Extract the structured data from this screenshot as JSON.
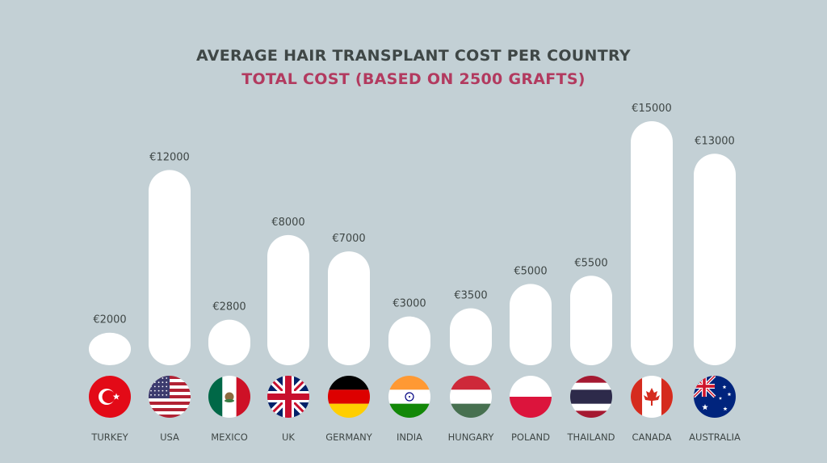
{
  "chart_data": {
    "type": "bar",
    "title": "AVERAGE HAIR TRANSPLANT COST PER COUNTRY",
    "subtitle": "TOTAL COST (BASED ON 2500 GRAFTS)",
    "categories": [
      "TURKEY",
      "USA",
      "MEXICO",
      "UK",
      "GERMANY",
      "INDIA",
      "HUNGARY",
      "POLAND",
      "THAILAND",
      "CANADA",
      "AUSTRALIA"
    ],
    "values": [
      2000,
      12000,
      2800,
      8000,
      7000,
      3000,
      3500,
      5000,
      5500,
      15000,
      13000
    ],
    "value_labels": [
      "€2000",
      "€12000",
      "€2800",
      "€8000",
      "€7000",
      "€3000",
      "€3500",
      "€5000",
      "€5500",
      "€15000",
      "€13000"
    ],
    "flag_icons": [
      "turkey-flag-icon",
      "usa-flag-icon",
      "mexico-flag-icon",
      "uk-flag-icon",
      "germany-flag-icon",
      "india-flag-icon",
      "hungary-flag-icon",
      "poland-flag-icon",
      "thailand-flag-icon",
      "canada-flag-icon",
      "australia-flag-icon"
    ],
    "xlabel": "",
    "ylabel": "",
    "grid": false,
    "colors": {
      "background": "#c3d0d5",
      "bar": "#ffffff",
      "title": "#3f4746",
      "subtitle": "#b23a5f",
      "labels": "#3f4746"
    }
  }
}
